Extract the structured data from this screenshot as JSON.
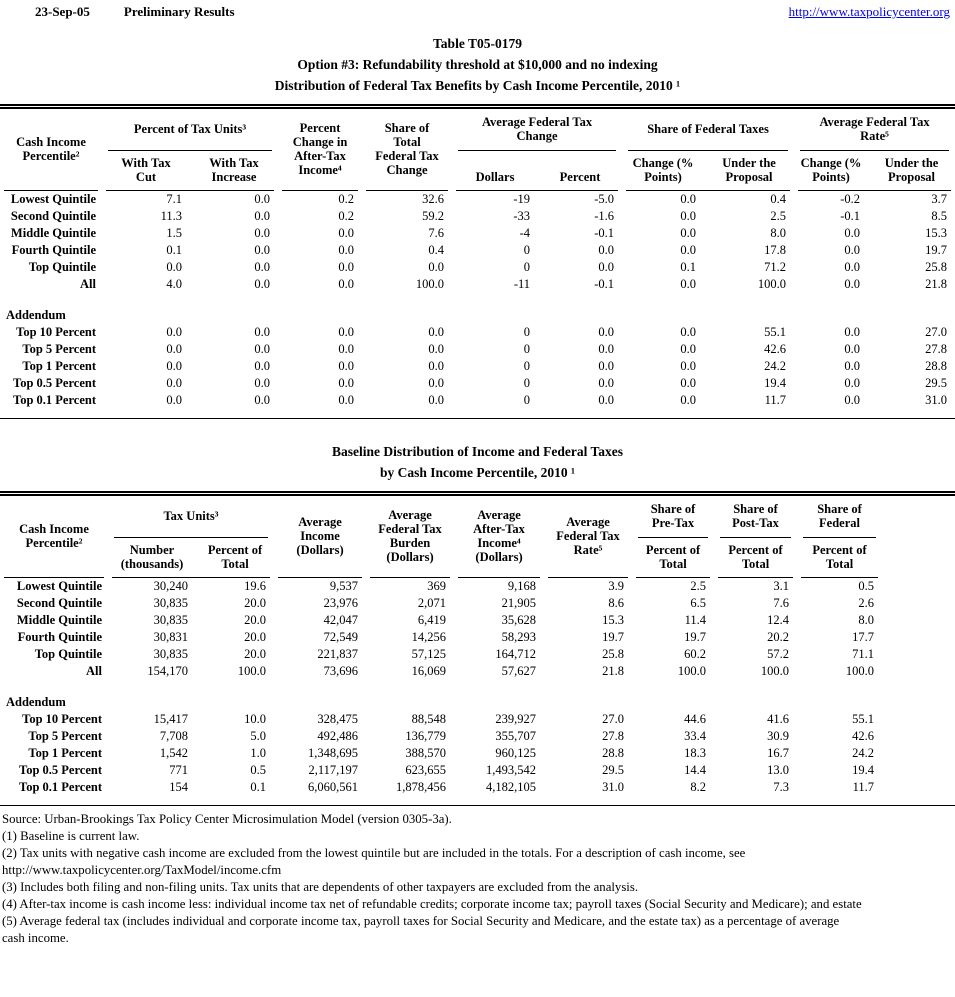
{
  "page": {
    "date": "23-Sep-05",
    "status": "Preliminary Results",
    "link": "http://www.taxpolicycenter.org"
  },
  "colors": {
    "link": "#0000ee",
    "text": "#000000",
    "background": "#ffffff"
  },
  "title": {
    "line1": "Table T05-0179",
    "line2": "Option #3: Refundability threshold at $10,000 and no indexing",
    "line3": "Distribution of Federal Tax Benefits by Cash Income Percentile, 2010 ¹"
  },
  "table1": {
    "headers": {
      "label": "Cash Income\nPercentile²",
      "group_tax_units": "Percent of Tax Units³",
      "with_tax_cut": "With Tax\nCut",
      "with_tax_increase": "With Tax\nIncrease",
      "pct_change_after_tax": "Percent\nChange in\nAfter-Tax\nIncome⁴",
      "share_total_change": "Share of\nTotal\nFederal Tax\nChange",
      "group_avg_change": "Average Federal Tax\nChange",
      "dollars": "Dollars",
      "percent": "Percent",
      "group_share_taxes": "Share of Federal Taxes",
      "change_pts": "Change (%\nPoints)",
      "under_proposal": "Under the\nProposal",
      "group_avg_rate": "Average Federal Tax\nRate⁵"
    },
    "rows": [
      {
        "label": "Lowest Quintile",
        "values": [
          "7.1",
          "0.0",
          "0.2",
          "32.6",
          "-19",
          "-5.0",
          "0.0",
          "0.4",
          "-0.2",
          "3.7"
        ]
      },
      {
        "label": "Second Quintile",
        "values": [
          "11.3",
          "0.0",
          "0.2",
          "59.2",
          "-33",
          "-1.6",
          "0.0",
          "2.5",
          "-0.1",
          "8.5"
        ]
      },
      {
        "label": "Middle Quintile",
        "values": [
          "1.5",
          "0.0",
          "0.0",
          "7.6",
          "-4",
          "-0.1",
          "0.0",
          "8.0",
          "0.0",
          "15.3"
        ]
      },
      {
        "label": "Fourth Quintile",
        "values": [
          "0.1",
          "0.0",
          "0.0",
          "0.4",
          "0",
          "0.0",
          "0.0",
          "17.8",
          "0.0",
          "19.7"
        ]
      },
      {
        "label": "Top Quintile",
        "values": [
          "0.0",
          "0.0",
          "0.0",
          "0.0",
          "0",
          "0.0",
          "0.1",
          "71.2",
          "0.0",
          "25.8"
        ]
      },
      {
        "label": "All",
        "values": [
          "4.0",
          "0.0",
          "0.0",
          "100.0",
          "-11",
          "-0.1",
          "0.0",
          "100.0",
          "0.0",
          "21.8"
        ]
      }
    ],
    "addendum_label": "Addendum",
    "addendum": [
      {
        "label": "Top 10 Percent",
        "values": [
          "0.0",
          "0.0",
          "0.0",
          "0.0",
          "0",
          "0.0",
          "0.0",
          "55.1",
          "0.0",
          "27.0"
        ]
      },
      {
        "label": "Top 5 Percent",
        "values": [
          "0.0",
          "0.0",
          "0.0",
          "0.0",
          "0",
          "0.0",
          "0.0",
          "42.6",
          "0.0",
          "27.8"
        ]
      },
      {
        "label": "Top 1 Percent",
        "values": [
          "0.0",
          "0.0",
          "0.0",
          "0.0",
          "0",
          "0.0",
          "0.0",
          "24.2",
          "0.0",
          "28.8"
        ]
      },
      {
        "label": "Top 0.5 Percent",
        "values": [
          "0.0",
          "0.0",
          "0.0",
          "0.0",
          "0",
          "0.0",
          "0.0",
          "19.4",
          "0.0",
          "29.5"
        ]
      },
      {
        "label": "Top 0.1 Percent",
        "values": [
          "0.0",
          "0.0",
          "0.0",
          "0.0",
          "0",
          "0.0",
          "0.0",
          "11.7",
          "0.0",
          "31.0"
        ]
      }
    ]
  },
  "table2": {
    "title_line1": "Baseline Distribution of Income and Federal Taxes",
    "title_line2": "by Cash Income Percentile, 2010 ¹",
    "headers": {
      "label": "Cash Income\nPercentile²",
      "group_tax_units": "Tax Units³",
      "number_thousands": "Number\n(thousands)",
      "percent_of_total_sub": "Percent of\nTotal",
      "avg_income": "Average\nIncome\n(Dollars)",
      "avg_federal_tax_burden": "Average\nFederal Tax\nBurden\n(Dollars)",
      "avg_after_tax_income": "Average\nAfter-Tax\nIncome⁴\n(Dollars)",
      "avg_federal_tax_rate": "Average\nFederal Tax\nRate⁵",
      "group_share_pre_tax": "Share of\nPre-Tax",
      "group_share_post_tax": "Share of\nPost-Tax",
      "group_share_federal": "Share of\nFederal",
      "percent_of_total": "Percent of\nTotal"
    },
    "rows": [
      {
        "label": "Lowest Quintile",
        "values": [
          "30,240",
          "19.6",
          "9,537",
          "369",
          "9,168",
          "3.9",
          "2.5",
          "3.1",
          "0.5"
        ]
      },
      {
        "label": "Second Quintile",
        "values": [
          "30,835",
          "20.0",
          "23,976",
          "2,071",
          "21,905",
          "8.6",
          "6.5",
          "7.6",
          "2.6"
        ]
      },
      {
        "label": "Middle Quintile",
        "values": [
          "30,835",
          "20.0",
          "42,047",
          "6,419",
          "35,628",
          "15.3",
          "11.4",
          "12.4",
          "8.0"
        ]
      },
      {
        "label": "Fourth Quintile",
        "values": [
          "30,831",
          "20.0",
          "72,549",
          "14,256",
          "58,293",
          "19.7",
          "19.7",
          "20.2",
          "17.7"
        ]
      },
      {
        "label": "Top Quintile",
        "values": [
          "30,835",
          "20.0",
          "221,837",
          "57,125",
          "164,712",
          "25.8",
          "60.2",
          "57.2",
          "71.1"
        ]
      },
      {
        "label": "All",
        "values": [
          "154,170",
          "100.0",
          "73,696",
          "16,069",
          "57,627",
          "21.8",
          "100.0",
          "100.0",
          "100.0"
        ]
      }
    ],
    "addendum_label": "Addendum",
    "addendum": [
      {
        "label": "Top 10 Percent",
        "values": [
          "15,417",
          "10.0",
          "328,475",
          "88,548",
          "239,927",
          "27.0",
          "44.6",
          "41.6",
          "55.1"
        ]
      },
      {
        "label": "Top 5 Percent",
        "values": [
          "7,708",
          "5.0",
          "492,486",
          "136,779",
          "355,707",
          "27.8",
          "33.4",
          "30.9",
          "42.6"
        ]
      },
      {
        "label": "Top 1 Percent",
        "values": [
          "1,542",
          "1.0",
          "1,348,695",
          "388,570",
          "960,125",
          "28.8",
          "18.3",
          "16.7",
          "24.2"
        ]
      },
      {
        "label": "Top 0.5 Percent",
        "values": [
          "771",
          "0.5",
          "2,117,197",
          "623,655",
          "1,493,542",
          "29.5",
          "14.4",
          "13.0",
          "19.4"
        ]
      },
      {
        "label": "Top 0.1 Percent",
        "values": [
          "154",
          "0.1",
          "6,060,561",
          "1,878,456",
          "4,182,105",
          "31.0",
          "8.2",
          "7.3",
          "11.7"
        ]
      }
    ]
  },
  "footnotes": [
    "Source: Urban-Brookings Tax Policy Center Microsimulation Model (version 0305-3a).",
    "(1) Baseline is current law.",
    "(2) Tax units with negative cash income are excluded from the lowest quintile but are included in the totals. For a description of cash income, see",
    "http://www.taxpolicycenter.org/TaxModel/income.cfm",
    "(3) Includes both filing and non-filing units.  Tax units that are dependents of other taxpayers are excluded from the analysis.",
    "(4) After-tax income is cash income less: individual income tax net of refundable credits; corporate income tax; payroll taxes (Social Security and Medicare); and estate",
    "(5) Average federal tax (includes individual and corporate income tax, payroll taxes for Social Security and Medicare, and the estate tax) as a percentage of average",
    "cash income."
  ]
}
